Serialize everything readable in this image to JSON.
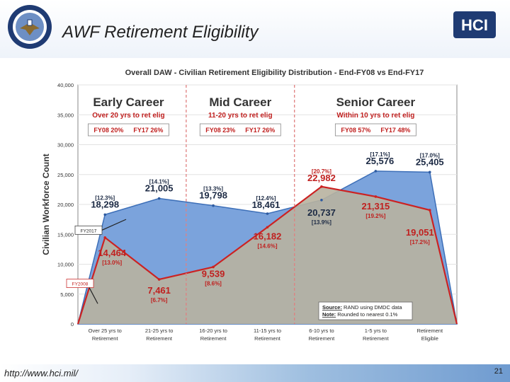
{
  "slide": {
    "title": "AWF Retirement Eligibility",
    "url": "http://www.hci.mil/",
    "page_number": "21",
    "logo_text": "HCI"
  },
  "chart_data": {
    "type": "area",
    "title": "Overall DAW - Civilian Retirement Eligibility Distribution - End-FY08 vs End-FY17",
    "ylabel": "Civilian Workforce Count",
    "xlabel": "",
    "ylim": [
      0,
      40000
    ],
    "yticks": [
      "0",
      "5,000",
      "10,000",
      "15,000",
      "20,000",
      "25,000",
      "30,000",
      "35,000",
      "40,000"
    ],
    "categories": [
      "Over 25 yrs to Retirement",
      "21-25 yrs to Retirement",
      "16-20 yrs to Retirement",
      "11-15 yrs to Retirement",
      "6-10 yrs to Retirement",
      "1-5 yrs to Retirement",
      "Retirement Eligible"
    ],
    "x_ticks": [
      [
        "Over 25 yrs to",
        "Retirement"
      ],
      [
        "21-25 yrs to",
        "Retirement"
      ],
      [
        "16-20 yrs to",
        "Retirement"
      ],
      [
        "11-15 yrs to",
        "Retirement"
      ],
      [
        "6-10 yrs to",
        "Retirement"
      ],
      [
        "1-5 yrs to",
        "Retirement"
      ],
      [
        "Retirement",
        "Eligible"
      ]
    ],
    "series": [
      {
        "name": "FY2017",
        "values": [
          18298,
          21005,
          19798,
          18461,
          20737,
          25576,
          25405
        ],
        "value_labels": [
          "18,298",
          "21,005",
          "19,798",
          "18,461",
          "20,737",
          "25,576",
          "25,405"
        ],
        "pct_labels": [
          "[12.3%]",
          "[14.1%]",
          "[13.3%]",
          "[12.4%]",
          "[13.9%]",
          "[17.1%]",
          "[17.0%]"
        ],
        "color": "#6f9ddb"
      },
      {
        "name": "FY2008",
        "values": [
          14464,
          7461,
          9539,
          16182,
          22982,
          21315,
          19051
        ],
        "value_labels": [
          "14,464",
          "7,461",
          "9,539",
          "16,182",
          "22,982",
          "21,315",
          "19,051"
        ],
        "pct_labels": [
          "[13.0%]",
          "[6.7%]",
          "[8.6%]",
          "[14.6%]",
          "[20.7%]",
          "[19.2%]",
          "[17.2%]"
        ],
        "color": "#cc2222"
      }
    ],
    "callouts": [
      "FY2017",
      "FY2008"
    ],
    "groups": [
      {
        "title": "Early Career",
        "subtitle": "Over 20 yrs to ret elig",
        "fy08": "FY08 20%",
        "fy17": "FY17 26%"
      },
      {
        "title": "Mid Career",
        "subtitle": "11-20 yrs to ret elig",
        "fy08": "FY08 23%",
        "fy17": "FY17 26%"
      },
      {
        "title": "Senior Career",
        "subtitle": "Within 10 yrs to ret elig",
        "fy08": "FY08 57%",
        "fy17": "FY17 48%"
      }
    ],
    "source_note": {
      "source_label": "Source:",
      "source_text": "RAND using DMDC data",
      "note_label": "Note:",
      "note_text": "Rounded to nearest 0.1%"
    },
    "colors": {
      "fy17_fill": "#7ba3dc",
      "fy08_fill": "#b8b2a0",
      "fy08_line": "#cc2222",
      "heading": "#c0201f",
      "divider": "#e08080"
    }
  }
}
